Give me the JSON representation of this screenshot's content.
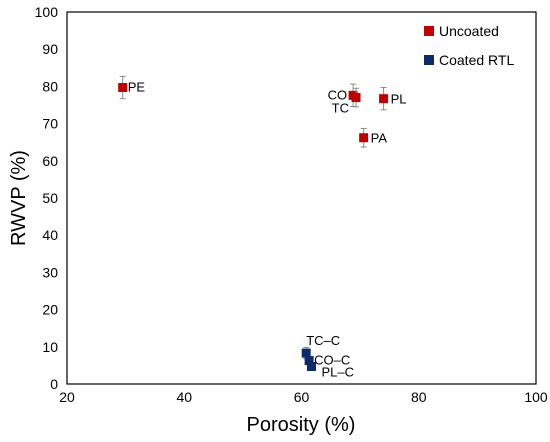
{
  "chart_data": {
    "type": "scatter",
    "xlabel": "Porosity (%)",
    "ylabel": "RWVP (%)",
    "xlim": [
      20,
      100
    ],
    "ylim": [
      0,
      100
    ],
    "xticks": [
      20,
      40,
      60,
      80,
      100
    ],
    "yticks": [
      0,
      10,
      20,
      30,
      40,
      50,
      60,
      70,
      80,
      90,
      100
    ],
    "grid": false,
    "legend_position": "top-right",
    "series": [
      {
        "name": "Uncoated",
        "color": "#c00000",
        "points": [
          {
            "x": 29.5,
            "y": 79.7,
            "err": 3.0,
            "label": "PE"
          },
          {
            "x": 68.8,
            "y": 77.6,
            "err": 3.0,
            "label": "CO"
          },
          {
            "x": 69.3,
            "y": 77.0,
            "err": 2.5,
            "label": "TC"
          },
          {
            "x": 74.0,
            "y": 76.7,
            "err": 3.0,
            "label": "PL"
          },
          {
            "x": 70.6,
            "y": 66.2,
            "err": 2.5,
            "label": "PA"
          }
        ]
      },
      {
        "name": "Coated RTL",
        "color": "#0d2a6b",
        "points": [
          {
            "x": 60.8,
            "y": 8.3,
            "err": 1.5,
            "label": "TC–C"
          },
          {
            "x": 61.3,
            "y": 6.3,
            "err": 1.0,
            "label": "CO–C"
          },
          {
            "x": 61.7,
            "y": 4.7,
            "err": 1.0,
            "label": "PL–C"
          }
        ]
      }
    ]
  }
}
